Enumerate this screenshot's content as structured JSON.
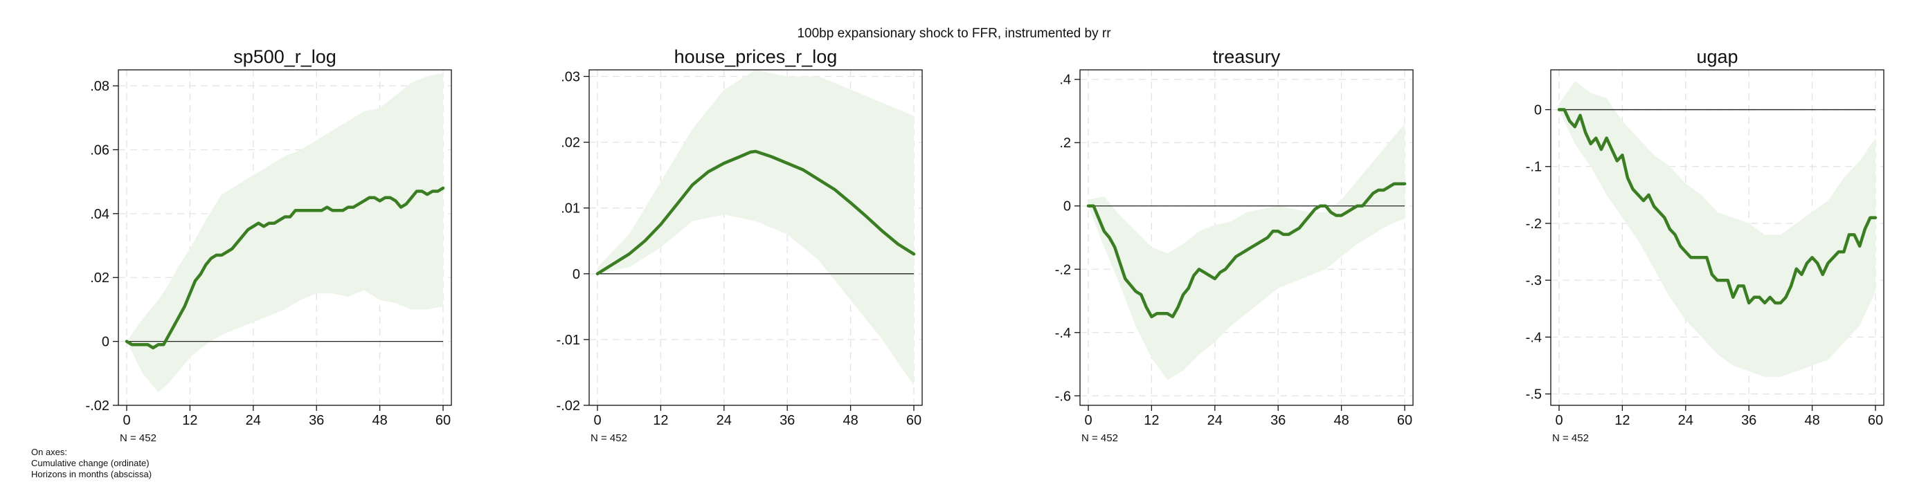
{
  "figure": {
    "title": "100bp expansionary shock to FFR, instrumented by rr",
    "notes": [
      "On axes:",
      "Cumulative change (ordinate)",
      "Horizons in months (abscissa)"
    ]
  },
  "colors": {
    "line": "#3b7d23",
    "band": "#edf5ea",
    "grid": "#e3e3e3",
    "zero": "#222222"
  },
  "chart_data": [
    {
      "type": "line",
      "title": "sp500_r_log",
      "xlim": [
        0,
        60
      ],
      "ylim": [
        -0.02,
        0.085
      ],
      "x_ticks": [
        0,
        12,
        24,
        36,
        48,
        60
      ],
      "y_ticks": [
        -0.02,
        0,
        0.02,
        0.04,
        0.06,
        0.08
      ],
      "y_tick_labels": [
        "-.02",
        "0",
        ".02",
        ".04",
        ".06",
        ".08"
      ],
      "sample_note": "N = 452",
      "band_x": [
        0,
        3,
        6,
        8,
        10,
        12,
        15,
        18,
        21,
        24,
        27,
        30,
        33,
        36,
        39,
        42,
        45,
        48,
        51,
        54,
        57,
        60
      ],
      "band_upper": [
        0,
        0.007,
        0.013,
        0.018,
        0.024,
        0.029,
        0.038,
        0.046,
        0.049,
        0.052,
        0.055,
        0.058,
        0.06,
        0.063,
        0.066,
        0.069,
        0.072,
        0.073,
        0.077,
        0.081,
        0.083,
        0.084
      ],
      "band_lower": [
        0,
        -0.01,
        -0.016,
        -0.013,
        -0.009,
        -0.005,
        -0.001,
        0.002,
        0.004,
        0.006,
        0.008,
        0.01,
        0.013,
        0.015,
        0.015,
        0.014,
        0.016,
        0.013,
        0.012,
        0.01,
        0.01,
        0.011
      ],
      "x": [
        0,
        1,
        2,
        3,
        4,
        5,
        6,
        7,
        8,
        9,
        10,
        11,
        12,
        13,
        14,
        15,
        16,
        17,
        18,
        19,
        20,
        21,
        22,
        23,
        24,
        25,
        26,
        27,
        28,
        29,
        30,
        31,
        32,
        33,
        34,
        35,
        36,
        37,
        38,
        39,
        40,
        41,
        42,
        43,
        44,
        45,
        46,
        47,
        48,
        49,
        50,
        51,
        52,
        53,
        54,
        55,
        56,
        57,
        58,
        59,
        60
      ],
      "y": [
        0,
        -0.001,
        -0.001,
        -0.001,
        -0.001,
        -0.002,
        -0.001,
        -0.001,
        0.002,
        0.005,
        0.008,
        0.011,
        0.015,
        0.019,
        0.021,
        0.024,
        0.026,
        0.027,
        0.027,
        0.028,
        0.029,
        0.031,
        0.033,
        0.035,
        0.036,
        0.037,
        0.036,
        0.037,
        0.037,
        0.038,
        0.039,
        0.039,
        0.041,
        0.041,
        0.041,
        0.041,
        0.041,
        0.041,
        0.042,
        0.041,
        0.041,
        0.041,
        0.042,
        0.042,
        0.043,
        0.044,
        0.045,
        0.045,
        0.044,
        0.045,
        0.045,
        0.044,
        0.042,
        0.043,
        0.045,
        0.047,
        0.047,
        0.046,
        0.047,
        0.047,
        0.048
      ]
    },
    {
      "type": "line",
      "title": "house_prices_r_log",
      "xlim": [
        0,
        60
      ],
      "ylim": [
        -0.02,
        0.031
      ],
      "x_ticks": [
        0,
        12,
        24,
        36,
        48,
        60
      ],
      "y_ticks": [
        -0.02,
        -0.01,
        0,
        0.01,
        0.02,
        0.03
      ],
      "y_tick_labels": [
        "-.02",
        "-.01",
        "0",
        ".01",
        ".02",
        ".03"
      ],
      "sample_note": "N = 452",
      "band_x": [
        0,
        6,
        12,
        18,
        24,
        30,
        36,
        42,
        48,
        54,
        60
      ],
      "band_upper": [
        0.001,
        0.006,
        0.014,
        0.022,
        0.028,
        0.031,
        0.03,
        0.03,
        0.028,
        0.026,
        0.024
      ],
      "band_lower": [
        0,
        0.001,
        0.004,
        0.008,
        0.009,
        0.008,
        0.006,
        0.002,
        -0.004,
        -0.01,
        -0.017
      ],
      "x": [
        0,
        3,
        6,
        9,
        12,
        15,
        18,
        21,
        24,
        27,
        29,
        30,
        33,
        36,
        39,
        42,
        45,
        48,
        51,
        54,
        57,
        60
      ],
      "y": [
        0,
        0.0015,
        0.003,
        0.005,
        0.0075,
        0.0105,
        0.0135,
        0.0155,
        0.0168,
        0.0178,
        0.0185,
        0.0186,
        0.0178,
        0.0168,
        0.0158,
        0.0143,
        0.0128,
        0.0108,
        0.0087,
        0.0065,
        0.0045,
        0.003
      ]
    },
    {
      "type": "line",
      "title": "treasury",
      "xlim": [
        0,
        60
      ],
      "ylim": [
        -0.63,
        0.43
      ],
      "x_ticks": [
        0,
        12,
        24,
        36,
        48,
        60
      ],
      "y_ticks": [
        -0.6,
        -0.4,
        -0.2,
        0,
        0.2,
        0.4
      ],
      "y_tick_labels": [
        "-.6",
        "-.4",
        "-.2",
        "0",
        ".2",
        ".4"
      ],
      "sample_note": "N = 452",
      "band_x": [
        0,
        3,
        6,
        9,
        12,
        15,
        18,
        21,
        24,
        27,
        30,
        33,
        36,
        39,
        42,
        45,
        48,
        51,
        54,
        57,
        60
      ],
      "band_upper": [
        0.02,
        0.03,
        -0.03,
        -0.08,
        -0.13,
        -0.15,
        -0.12,
        -0.08,
        -0.06,
        -0.05,
        -0.02,
        -0.01,
        0.0,
        -0.01,
        -0.02,
        -0.02,
        0.02,
        0.08,
        0.14,
        0.2,
        0.26
      ],
      "band_lower": [
        0,
        -0.13,
        -0.25,
        -0.38,
        -0.48,
        -0.55,
        -0.52,
        -0.47,
        -0.43,
        -0.38,
        -0.34,
        -0.3,
        -0.26,
        -0.24,
        -0.22,
        -0.2,
        -0.16,
        -0.12,
        -0.09,
        -0.06,
        -0.04
      ],
      "x": [
        0,
        1,
        2,
        3,
        4,
        5,
        6,
        7,
        8,
        9,
        10,
        11,
        12,
        13,
        14,
        15,
        16,
        17,
        18,
        19,
        20,
        21,
        22,
        23,
        24,
        25,
        26,
        27,
        28,
        29,
        30,
        31,
        32,
        33,
        34,
        35,
        36,
        37,
        38,
        39,
        40,
        41,
        42,
        43,
        44,
        45,
        46,
        47,
        48,
        49,
        50,
        51,
        52,
        53,
        54,
        55,
        56,
        57,
        58,
        59,
        60
      ],
      "y": [
        0,
        0,
        -0.04,
        -0.08,
        -0.1,
        -0.13,
        -0.18,
        -0.23,
        -0.25,
        -0.27,
        -0.28,
        -0.32,
        -0.35,
        -0.34,
        -0.34,
        -0.34,
        -0.35,
        -0.32,
        -0.28,
        -0.26,
        -0.22,
        -0.2,
        -0.21,
        -0.22,
        -0.23,
        -0.21,
        -0.2,
        -0.18,
        -0.16,
        -0.15,
        -0.14,
        -0.13,
        -0.12,
        -0.11,
        -0.1,
        -0.08,
        -0.08,
        -0.09,
        -0.09,
        -0.08,
        -0.07,
        -0.05,
        -0.03,
        -0.01,
        0.0,
        0.0,
        -0.02,
        -0.03,
        -0.03,
        -0.02,
        -0.01,
        0.0,
        0.0,
        0.02,
        0.04,
        0.05,
        0.05,
        0.06,
        0.07,
        0.07,
        0.07
      ]
    },
    {
      "type": "line",
      "title": "ugap",
      "xlim": [
        0,
        60
      ],
      "ylim": [
        -0.52,
        0.07
      ],
      "x_ticks": [
        0,
        12,
        24,
        36,
        48,
        60
      ],
      "y_ticks": [
        -0.5,
        -0.4,
        -0.3,
        -0.2,
        -0.1,
        0
      ],
      "y_tick_labels": [
        "-.5",
        "-.4",
        "-.3",
        "-.2",
        "-.1",
        "0"
      ],
      "sample_note": "N = 452",
      "band_x": [
        0,
        3,
        6,
        9,
        12,
        15,
        18,
        21,
        24,
        27,
        30,
        33,
        36,
        39,
        42,
        45,
        48,
        51,
        54,
        57,
        60
      ],
      "band_upper": [
        0.01,
        0.05,
        0.03,
        0.02,
        -0.02,
        -0.05,
        -0.08,
        -0.1,
        -0.13,
        -0.15,
        -0.18,
        -0.19,
        -0.2,
        -0.22,
        -0.22,
        -0.2,
        -0.18,
        -0.16,
        -0.12,
        -0.09,
        -0.05
      ],
      "band_lower": [
        0,
        -0.06,
        -0.1,
        -0.15,
        -0.19,
        -0.23,
        -0.28,
        -0.33,
        -0.37,
        -0.4,
        -0.43,
        -0.45,
        -0.46,
        -0.47,
        -0.47,
        -0.46,
        -0.45,
        -0.44,
        -0.41,
        -0.38,
        -0.32
      ],
      "x": [
        0,
        1,
        2,
        3,
        4,
        5,
        6,
        7,
        8,
        9,
        10,
        11,
        12,
        13,
        14,
        15,
        16,
        17,
        18,
        19,
        20,
        21,
        22,
        23,
        24,
        25,
        26,
        27,
        28,
        29,
        30,
        31,
        32,
        33,
        34,
        35,
        36,
        37,
        38,
        39,
        40,
        41,
        42,
        43,
        44,
        45,
        46,
        47,
        48,
        49,
        50,
        51,
        52,
        53,
        54,
        55,
        56,
        57,
        58,
        59,
        60
      ],
      "y": [
        0,
        0,
        -0.02,
        -0.03,
        -0.01,
        -0.04,
        -0.06,
        -0.05,
        -0.07,
        -0.05,
        -0.07,
        -0.09,
        -0.08,
        -0.12,
        -0.14,
        -0.15,
        -0.16,
        -0.15,
        -0.17,
        -0.18,
        -0.19,
        -0.21,
        -0.22,
        -0.24,
        -0.25,
        -0.26,
        -0.26,
        -0.26,
        -0.26,
        -0.29,
        -0.3,
        -0.3,
        -0.3,
        -0.33,
        -0.31,
        -0.31,
        -0.34,
        -0.33,
        -0.33,
        -0.34,
        -0.33,
        -0.34,
        -0.34,
        -0.33,
        -0.31,
        -0.28,
        -0.29,
        -0.27,
        -0.26,
        -0.27,
        -0.29,
        -0.27,
        -0.26,
        -0.25,
        -0.25,
        -0.22,
        -0.22,
        -0.24,
        -0.21,
        -0.19,
        -0.19
      ]
    }
  ]
}
